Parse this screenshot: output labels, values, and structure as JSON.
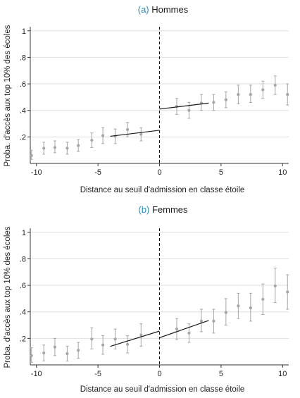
{
  "chart_data": [
    {
      "type": "scatter",
      "panel_letter": "(a)",
      "title": "Hommes",
      "xlabel": "Distance au seuil d'admission en classe étoile",
      "ylabel": "Proba. d'accès aux top 10% des écoles",
      "xlim": [
        -10.5,
        10.5
      ],
      "ylim": [
        0,
        1.02
      ],
      "xticks": [
        -10,
        -5,
        0,
        5,
        10
      ],
      "xtick_labels": [
        "-10",
        "-5",
        "0",
        "5",
        "10"
      ],
      "yticks": [
        0.2,
        0.4,
        0.6,
        0.8,
        1
      ],
      "ytick_labels": [
        ".2",
        ".4",
        ".6",
        ".8",
        "1"
      ],
      "grid": true,
      "threshold_x": 0,
      "points": [
        {
          "x": -10.4,
          "y": 0.06,
          "lo": 0.03,
          "hi": 0.1
        },
        {
          "x": -9.4,
          "y": 0.115,
          "lo": 0.07,
          "hi": 0.16
        },
        {
          "x": -8.5,
          "y": 0.12,
          "lo": 0.08,
          "hi": 0.17
        },
        {
          "x": -7.5,
          "y": 0.115,
          "lo": 0.07,
          "hi": 0.16
        },
        {
          "x": -6.6,
          "y": 0.135,
          "lo": 0.09,
          "hi": 0.18
        },
        {
          "x": -5.5,
          "y": 0.175,
          "lo": 0.12,
          "hi": 0.23
        },
        {
          "x": -4.6,
          "y": 0.21,
          "lo": 0.15,
          "hi": 0.27
        },
        {
          "x": -3.6,
          "y": 0.205,
          "lo": 0.15,
          "hi": 0.26
        },
        {
          "x": -2.6,
          "y": 0.255,
          "lo": 0.2,
          "hi": 0.31
        },
        {
          "x": -1.5,
          "y": 0.22,
          "lo": 0.17,
          "hi": 0.27
        },
        {
          "x": 1.4,
          "y": 0.43,
          "lo": 0.37,
          "hi": 0.49
        },
        {
          "x": 2.4,
          "y": 0.4,
          "lo": 0.34,
          "hi": 0.46
        },
        {
          "x": 3.4,
          "y": 0.455,
          "lo": 0.4,
          "hi": 0.52
        },
        {
          "x": 4.4,
          "y": 0.46,
          "lo": 0.4,
          "hi": 0.52
        },
        {
          "x": 5.4,
          "y": 0.48,
          "lo": 0.42,
          "hi": 0.54
        },
        {
          "x": 6.4,
          "y": 0.52,
          "lo": 0.45,
          "hi": 0.59
        },
        {
          "x": 7.4,
          "y": 0.52,
          "lo": 0.46,
          "hi": 0.59
        },
        {
          "x": 8.4,
          "y": 0.555,
          "lo": 0.49,
          "hi": 0.62
        },
        {
          "x": 9.4,
          "y": 0.59,
          "lo": 0.52,
          "hi": 0.66
        },
        {
          "x": 10.4,
          "y": 0.52,
          "lo": 0.44,
          "hi": 0.6
        }
      ],
      "fit_left": [
        {
          "x": -4,
          "y": 0.205
        },
        {
          "x": 0,
          "y": 0.25
        }
      ],
      "fit_right": [
        {
          "x": 0,
          "y": 0.41
        },
        {
          "x": 4,
          "y": 0.455
        }
      ],
      "colors": {
        "points": "#a6a6a6",
        "fit": "#1a1a1a",
        "grid": "#dedede",
        "accent": "#2a8fb8"
      }
    },
    {
      "type": "scatter",
      "panel_letter": "(b)",
      "title": "Femmes",
      "xlabel": "Distance au seuil d'admission en classe étoile",
      "ylabel": "Proba. d'accès aux top 10% des écoles",
      "xlim": [
        -10.5,
        10.5
      ],
      "ylim": [
        0,
        1.02
      ],
      "xticks": [
        -10,
        -5,
        0,
        5,
        10
      ],
      "xtick_labels": [
        "-10",
        "-5",
        "0",
        "5",
        "10"
      ],
      "yticks": [
        0.2,
        0.4,
        0.6,
        0.8,
        1
      ],
      "ytick_labels": [
        ".2",
        ".4",
        ".6",
        ".8",
        "1"
      ],
      "grid": true,
      "threshold_x": 0,
      "points": [
        {
          "x": -10.4,
          "y": 0.07,
          "lo": 0.02,
          "hi": 0.13
        },
        {
          "x": -9.4,
          "y": 0.09,
          "lo": 0.03,
          "hi": 0.15
        },
        {
          "x": -8.5,
          "y": 0.135,
          "lo": 0.07,
          "hi": 0.2
        },
        {
          "x": -7.5,
          "y": 0.085,
          "lo": 0.03,
          "hi": 0.14
        },
        {
          "x": -6.6,
          "y": 0.11,
          "lo": 0.05,
          "hi": 0.17
        },
        {
          "x": -5.5,
          "y": 0.195,
          "lo": 0.12,
          "hi": 0.28
        },
        {
          "x": -4.6,
          "y": 0.15,
          "lo": 0.08,
          "hi": 0.22
        },
        {
          "x": -3.6,
          "y": 0.195,
          "lo": 0.12,
          "hi": 0.27
        },
        {
          "x": -2.6,
          "y": 0.155,
          "lo": 0.09,
          "hi": 0.22
        },
        {
          "x": -1.5,
          "y": 0.225,
          "lo": 0.14,
          "hi": 0.31
        },
        {
          "x": 1.4,
          "y": 0.27,
          "lo": 0.19,
          "hi": 0.35
        },
        {
          "x": 2.4,
          "y": 0.24,
          "lo": 0.17,
          "hi": 0.31
        },
        {
          "x": 3.4,
          "y": 0.33,
          "lo": 0.25,
          "hi": 0.42
        },
        {
          "x": 4.4,
          "y": 0.33,
          "lo": 0.24,
          "hi": 0.42
        },
        {
          "x": 5.4,
          "y": 0.395,
          "lo": 0.3,
          "hi": 0.5
        },
        {
          "x": 6.4,
          "y": 0.445,
          "lo": 0.35,
          "hi": 0.54
        },
        {
          "x": 7.4,
          "y": 0.43,
          "lo": 0.33,
          "hi": 0.54
        },
        {
          "x": 8.4,
          "y": 0.495,
          "lo": 0.38,
          "hi": 0.61
        },
        {
          "x": 9.4,
          "y": 0.595,
          "lo": 0.47,
          "hi": 0.73
        },
        {
          "x": 10.4,
          "y": 0.55,
          "lo": 0.42,
          "hi": 0.68
        }
      ],
      "fit_left": [
        {
          "x": -4,
          "y": 0.14
        },
        {
          "x": 0,
          "y": 0.255
        }
      ],
      "fit_right": [
        {
          "x": 0,
          "y": 0.205
        },
        {
          "x": 4,
          "y": 0.335
        }
      ],
      "colors": {
        "points": "#a6a6a6",
        "fit": "#1a1a1a",
        "grid": "#dedede",
        "accent": "#2a8fb8"
      }
    }
  ]
}
